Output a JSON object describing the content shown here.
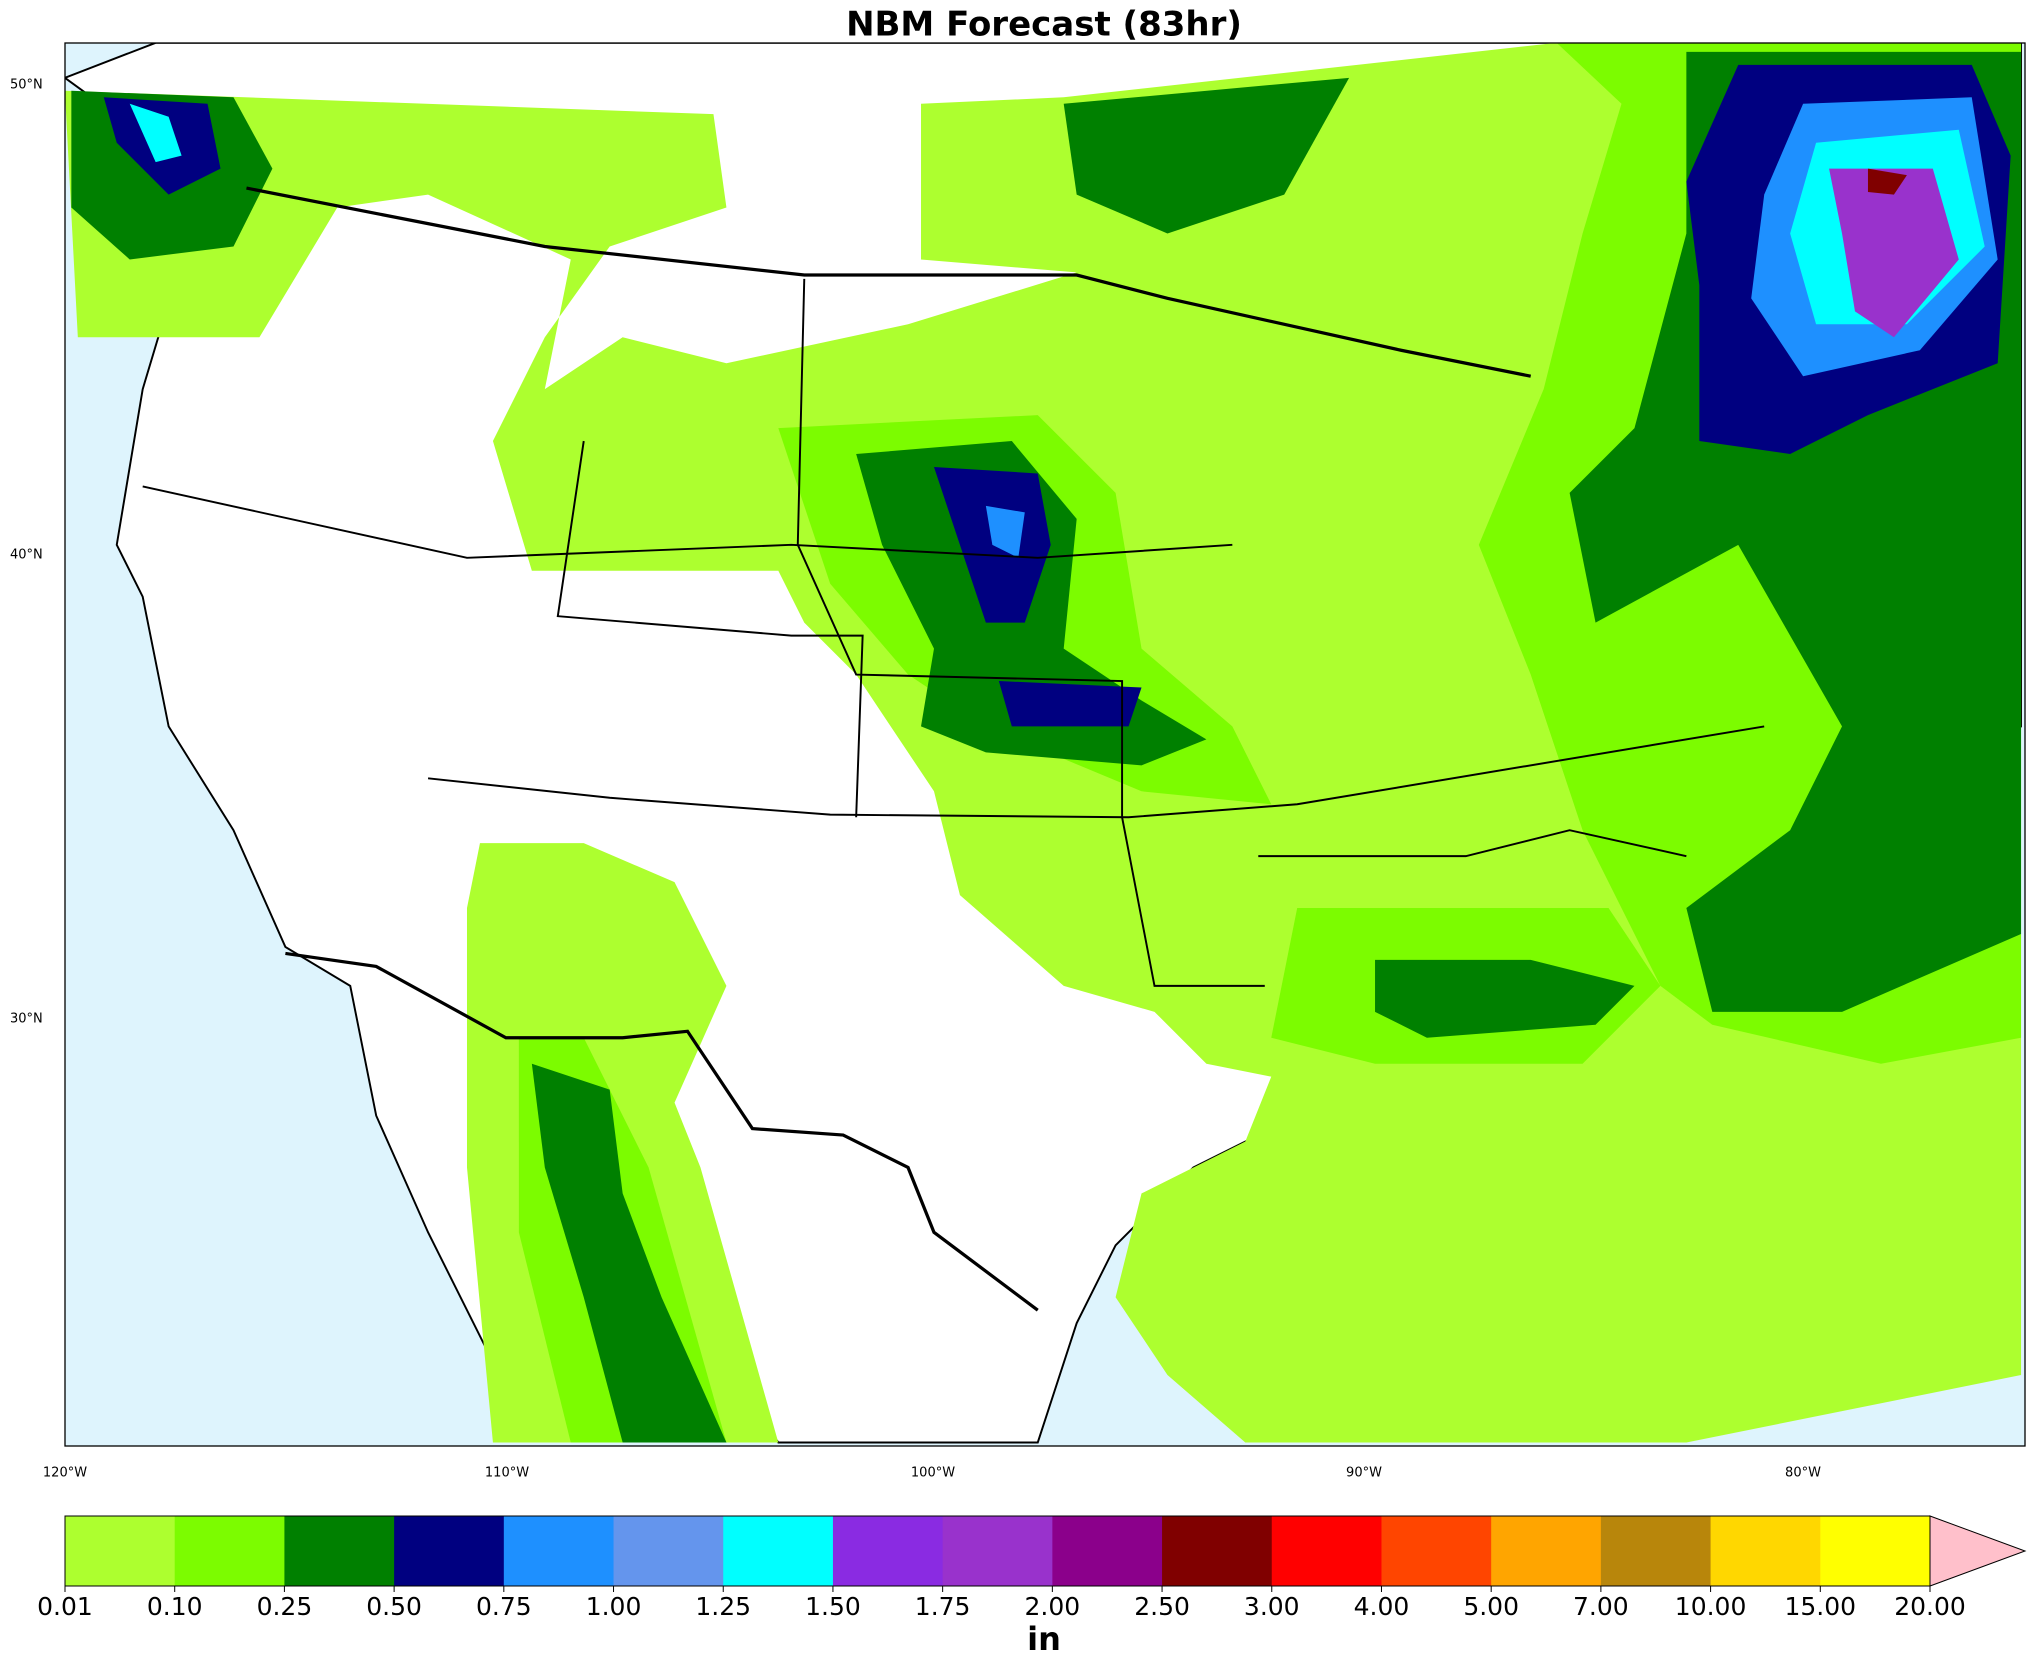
{
  "header": {
    "title": "NBM Forecast (83hr)"
  },
  "map": {
    "lat_labels": [
      "50°N",
      "40°N",
      "30°N"
    ],
    "lon_labels": [
      "120°W",
      "110°W",
      "100°W",
      "90°W",
      "80°W"
    ]
  },
  "colorbar": {
    "colors": [
      "#adff2f",
      "#7cfc00",
      "#008000",
      "#000080",
      "#1e90ff",
      "#6495ed",
      "#00ffff",
      "#8a2be2",
      "#9932cc",
      "#8b008b",
      "#800000",
      "#ff0000",
      "#ff4500",
      "#ffa500",
      "#b8860b",
      "#ffd700",
      "#ffff00"
    ],
    "extend_color": "#ffc0cb",
    "ticks": [
      "0.01",
      "0.10",
      "0.25",
      "0.50",
      "0.75",
      "1.00",
      "1.25",
      "1.50",
      "1.75",
      "2.00",
      "2.50",
      "3.00",
      "4.00",
      "5.00",
      "7.00",
      "10.00",
      "15.00",
      "20.00"
    ],
    "unit": "in"
  }
}
